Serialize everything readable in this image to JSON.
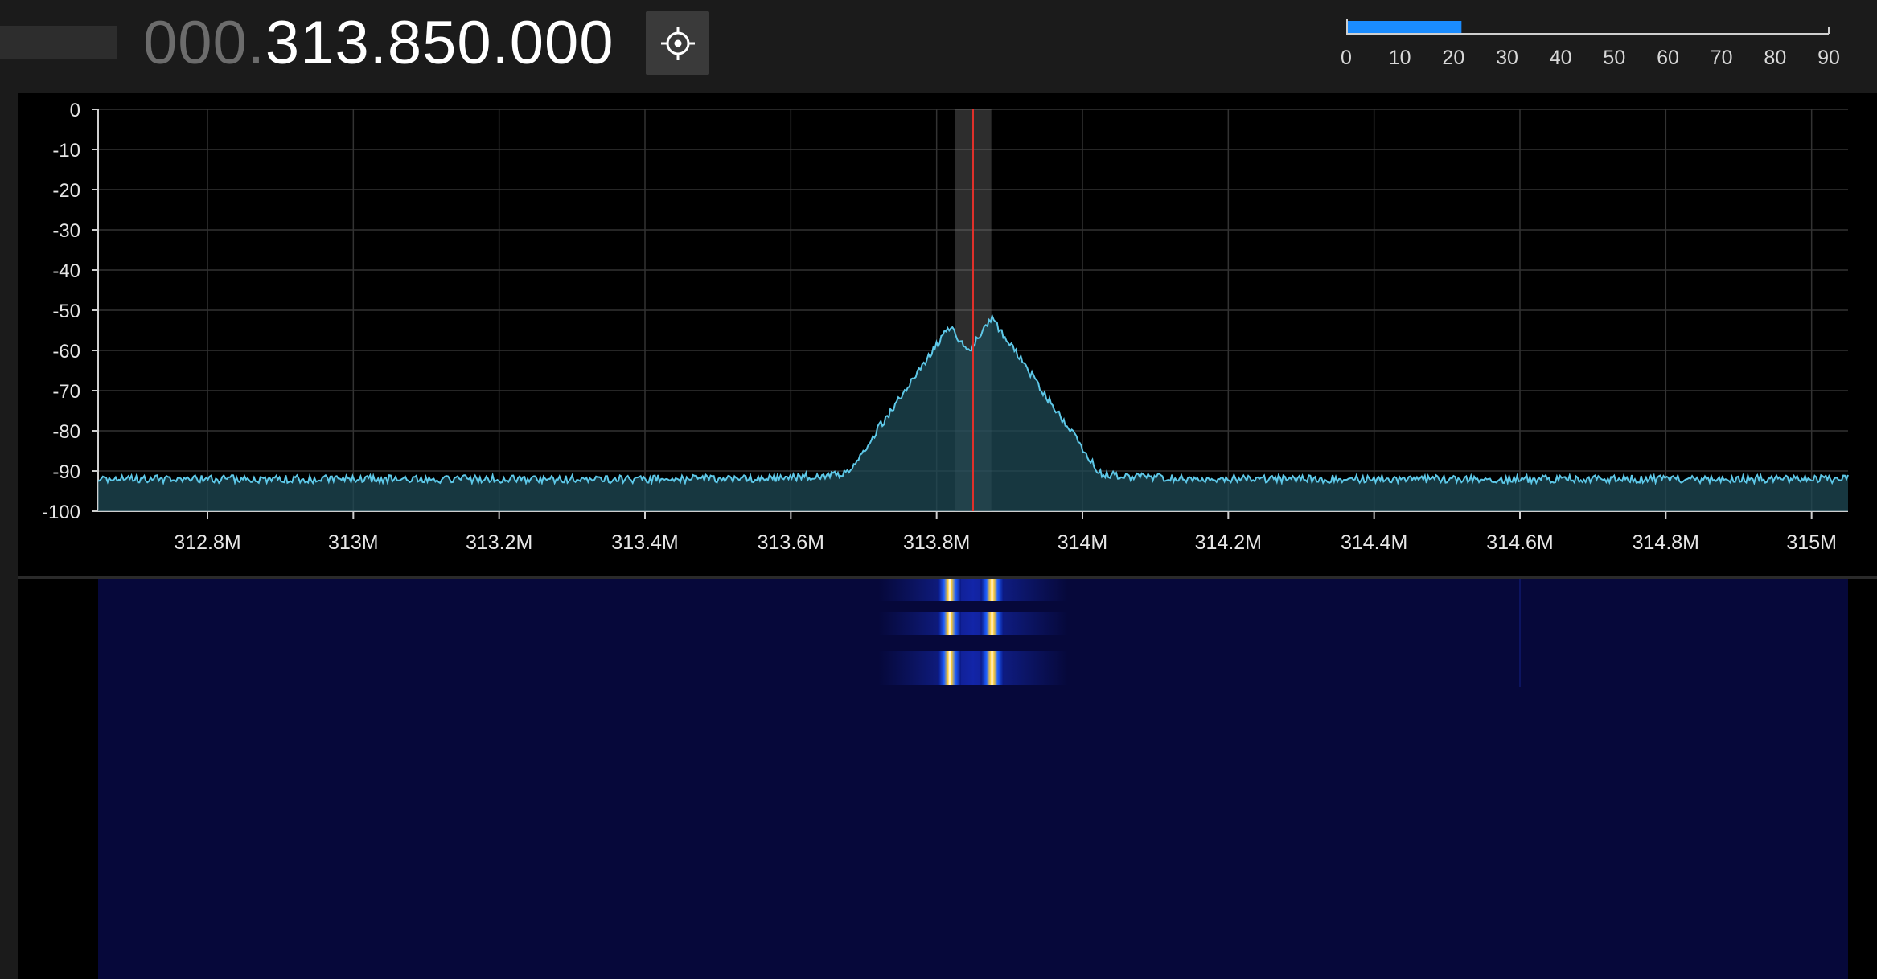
{
  "header": {
    "frequency_prefix": "000.",
    "frequency_main": "313.850.000",
    "center_button_icon": "crosshair-target-icon"
  },
  "level_meter": {
    "ticks": [
      "0",
      "10",
      "20",
      "30",
      "40",
      "50",
      "60",
      "70",
      "80",
      "90"
    ],
    "range": [
      0,
      90
    ],
    "value": 21.5,
    "fill_color": "#1a8cff"
  },
  "spectrum": {
    "y_ticks": [
      "0",
      "-10",
      "-20",
      "-30",
      "-40",
      "-50",
      "-60",
      "-70",
      "-80",
      "-90",
      "-100"
    ],
    "y_range": [
      -100,
      0
    ],
    "x_ticks": [
      "312.8M",
      "313M",
      "313.2M",
      "313.4M",
      "313.6M",
      "313.8M",
      "314M",
      "314.2M",
      "314.4M",
      "314.6M",
      "314.8M",
      "315M"
    ],
    "x_range_mhz": [
      312.65,
      315.05
    ],
    "center_mhz": 313.85,
    "band_mhz": [
      313.825,
      313.875
    ],
    "trace_color": "#5ec8e8",
    "fill_color": "#1f4a55",
    "center_line_color": "#e0302a",
    "noise_floor_db": -101,
    "peaks": [
      {
        "mhz": 313.818,
        "db": -54
      },
      {
        "mhz": 313.876,
        "db": -52
      },
      {
        "mhz": 314.6,
        "db": -92
      }
    ]
  },
  "waterfall": {
    "background_color": "#06083a",
    "bursts": [
      {
        "rows": [
          0,
          28
        ]
      },
      {
        "rows": [
          42,
          70
        ]
      },
      {
        "rows": [
          90,
          132
        ]
      }
    ],
    "signal_mhz": [
      313.818,
      313.876
    ],
    "faint_line_mhz": 314.6
  }
}
